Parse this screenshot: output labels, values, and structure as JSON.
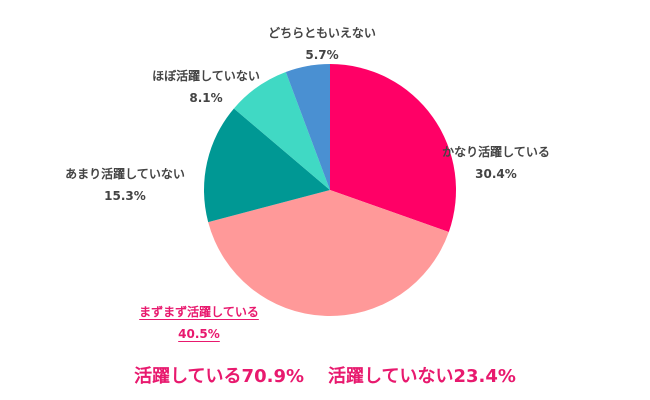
{
  "chart_data": {
    "type": "pie",
    "title": "",
    "start_angle_deg": 0,
    "direction": "clockwise",
    "categories": [
      "かなり活躍している",
      "まずまず活躍している",
      "あまり活躍していない",
      "ほぼ活躍していない",
      "どちらともいえない"
    ],
    "values": [
      30.4,
      40.5,
      15.3,
      8.1,
      5.7
    ],
    "value_labels": [
      "30.4%",
      "40.5%",
      "15.3%",
      "8.1%",
      "5.7%"
    ],
    "colors": [
      "#FF0066",
      "#FF9999",
      "#009894",
      "#40D9C4",
      "#4A90D2"
    ],
    "highlighted": "まずまず活躍している",
    "legend": "none (labels placed outside slices)",
    "summary": [
      "活躍している70.9%",
      "活躍していない23.4%"
    ]
  },
  "labels": {
    "s0": {
      "name": "かなり活躍している",
      "pct": "30.4%"
    },
    "s1": {
      "name": "まずまず活躍している",
      "pct": "40.5%"
    },
    "s2": {
      "name": "あまり活躍していない",
      "pct": "15.3%"
    },
    "s3": {
      "name": "ほぼ活躍していない",
      "pct": "8.1%"
    },
    "s4": {
      "name": "どちらともいえない",
      "pct": "5.7%"
    }
  },
  "summary": {
    "active": "活躍している70.9%",
    "inactive": "活躍していない23.4%"
  },
  "colors": {
    "accent": "#E8196E",
    "label_text": "#444444"
  }
}
